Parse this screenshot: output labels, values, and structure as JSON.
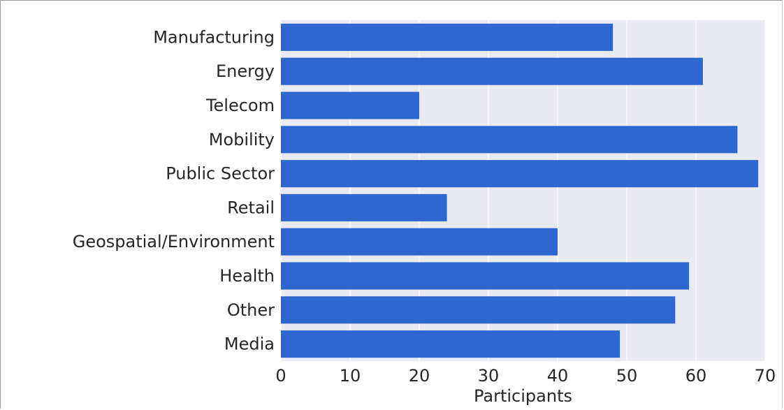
{
  "chart_data": {
    "type": "bar",
    "orientation": "horizontal",
    "categories": [
      "Manufacturing",
      "Energy",
      "Telecom",
      "Mobility",
      "Public Sector",
      "Retail",
      "Geospatial/Environment",
      "Health",
      "Other",
      "Media"
    ],
    "values": [
      48,
      61,
      20,
      66,
      69,
      24,
      40,
      59,
      57,
      49
    ],
    "xlabel": "Participants",
    "ylabel": "",
    "title": "",
    "xlim": [
      0,
      70
    ],
    "xticks": [
      0,
      10,
      20,
      30,
      40,
      50,
      60,
      70
    ],
    "grid": true,
    "bar_color": "#2e67cf",
    "background_color": "#eaeaf2",
    "grid_color": "#ffffff"
  }
}
